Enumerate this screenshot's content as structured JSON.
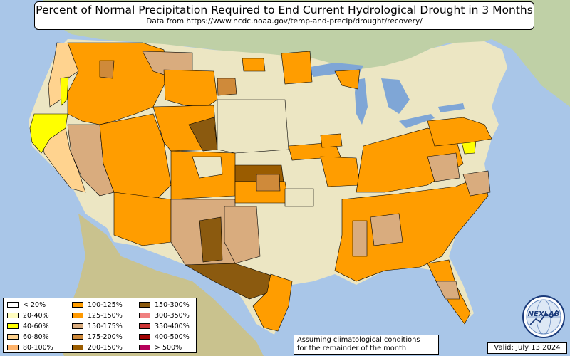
{
  "title": "Percent of Normal Precipitation Required to End Current Hydrological Drought in 3 Months",
  "subtitle": "Data from https://www.ncdc.noaa.gov/temp-and-precip/drought/recovery/",
  "legend": [
    {
      "label": "< 20%",
      "color": "#ffffff"
    },
    {
      "label": "20-40%",
      "color": "#fffdbf"
    },
    {
      "label": "40-60%",
      "color": "#ffff00"
    },
    {
      "label": "60-80%",
      "color": "#ffd38f"
    },
    {
      "label": "80-100%",
      "color": "#ffb36a"
    },
    {
      "label": "100-125%",
      "color": "#ff9d00"
    },
    {
      "label": "125-150%",
      "color": "#ff9900"
    },
    {
      "label": "150-175%",
      "color": "#d9ac7e"
    },
    {
      "label": "175-200%",
      "color": "#cf8a3a"
    },
    {
      "label": "200-150%",
      "color": "#9a5c00"
    },
    {
      "label": "150-300%",
      "color": "#8b5a0f"
    },
    {
      "label": "300-350%",
      "color": "#f08080"
    },
    {
      "label": "350-400%",
      "color": "#cc3333"
    },
    {
      "label": "400-500%",
      "color": "#a00000"
    },
    {
      "label": "> 500%",
      "color": "#b5005a"
    }
  ],
  "note_line1": "Assuming climatological conditions",
  "note_line2": "for the remainder of the month",
  "valid": "Valid: July 13 2024",
  "logo_text": "NEXLAB",
  "colors": {
    "ocean": "#a9c6e8",
    "land_base": "#ece6c3",
    "canada": "#bfd0a6",
    "mexico": "#c9c28e",
    "orange": "#ff9d00",
    "tan": "#d9ac7e",
    "light_orange": "#ffd38f",
    "dark_brown": "#8b5a0f",
    "yellow": "#ffff00",
    "lake": "#7fa6d6"
  }
}
